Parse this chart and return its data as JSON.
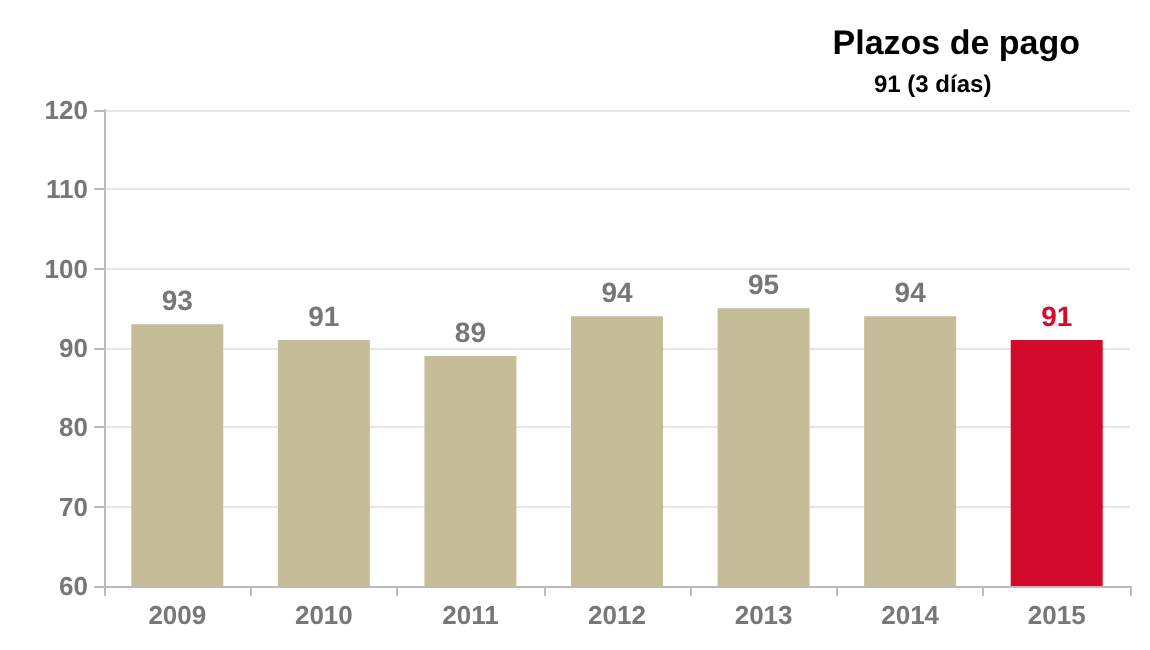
{
  "chart_data": {
    "type": "bar",
    "title": "Plazos de pago",
    "subtitle": "91 (3 días)",
    "categories": [
      "2009",
      "2010",
      "2011",
      "2012",
      "2013",
      "2014",
      "2015"
    ],
    "values": [
      93,
      91,
      89,
      94,
      95,
      94,
      91
    ],
    "colors": [
      "#c4bd97",
      "#c4bd97",
      "#c4bd97",
      "#c4bd97",
      "#c4bd97",
      "#c4bd97",
      "#d40a2c"
    ],
    "ylim": [
      60,
      120
    ],
    "yticks": [
      60,
      70,
      80,
      90,
      100,
      110,
      120
    ],
    "grid": "y",
    "data_labels": true
  }
}
